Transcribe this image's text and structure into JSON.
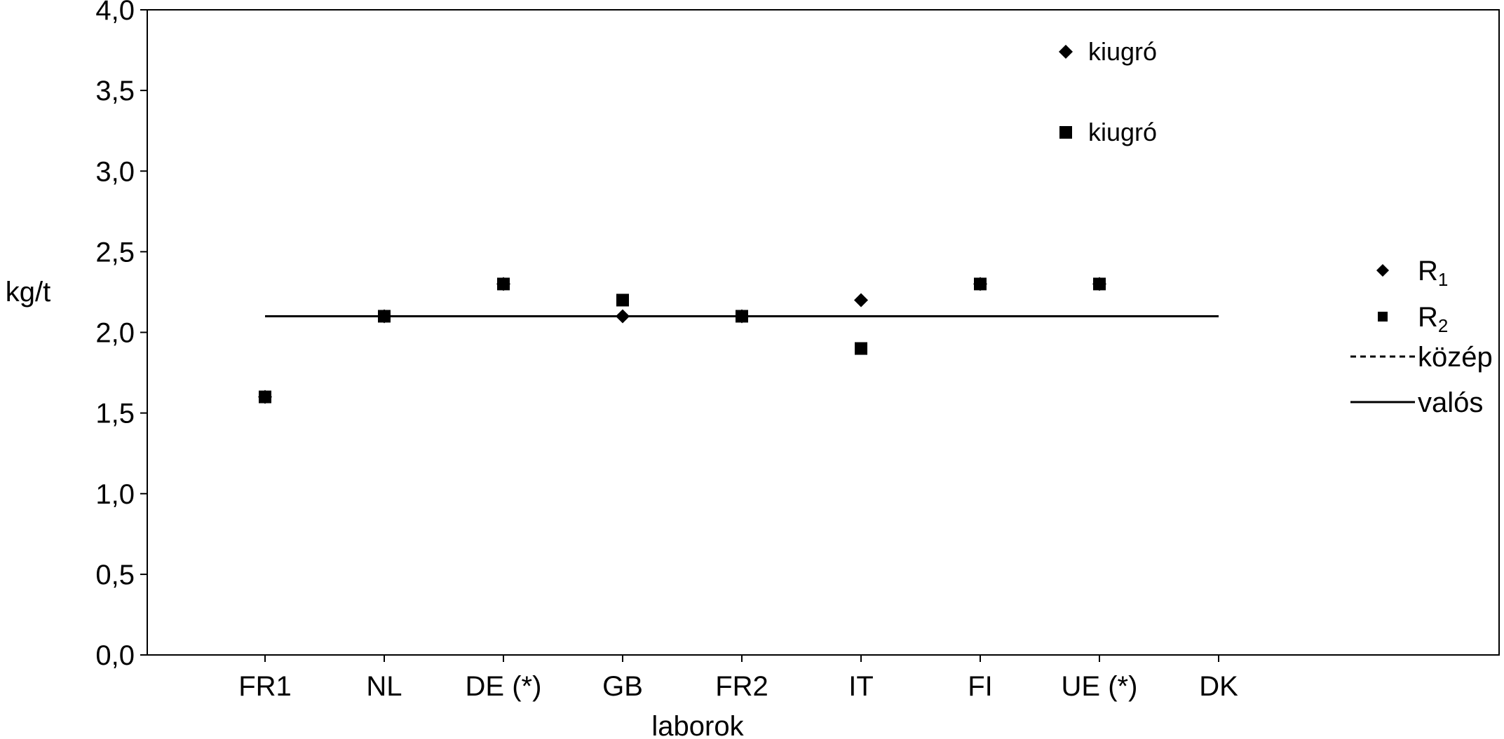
{
  "chart_data": {
    "type": "scatter",
    "xlabel": "laborok",
    "ylabel": "kg/t",
    "ylim": [
      0,
      4
    ],
    "yticks": [
      "0,0",
      "0,5",
      "1,0",
      "1,5",
      "2,0",
      "2,5",
      "3,0",
      "3,5",
      "4,0"
    ],
    "categories": [
      "FR1",
      "NL",
      "DE (*)",
      "GB",
      "FR2",
      "IT",
      "FI",
      "UE (*)",
      "DK"
    ],
    "series": [
      {
        "name": "R",
        "sub": "1",
        "marker": "diamond",
        "values": [
          1.6,
          2.1,
          2.3,
          2.1,
          2.1,
          2.2,
          2.3,
          2.3,
          null
        ]
      },
      {
        "name": "R",
        "sub": "2",
        "marker": "square",
        "values": [
          1.6,
          2.1,
          2.3,
          2.2,
          2.1,
          1.9,
          2.3,
          2.3,
          null
        ]
      }
    ],
    "lines": [
      {
        "name": "közép",
        "style": "dashed",
        "value": 2.1
      },
      {
        "name": "valós",
        "style": "solid",
        "value": 2.1
      }
    ],
    "annotations": [
      {
        "text": "kiugró",
        "marker": "diamond"
      },
      {
        "text": "kiugró",
        "marker": "square"
      }
    ],
    "grid": false,
    "legend_position": "right"
  }
}
